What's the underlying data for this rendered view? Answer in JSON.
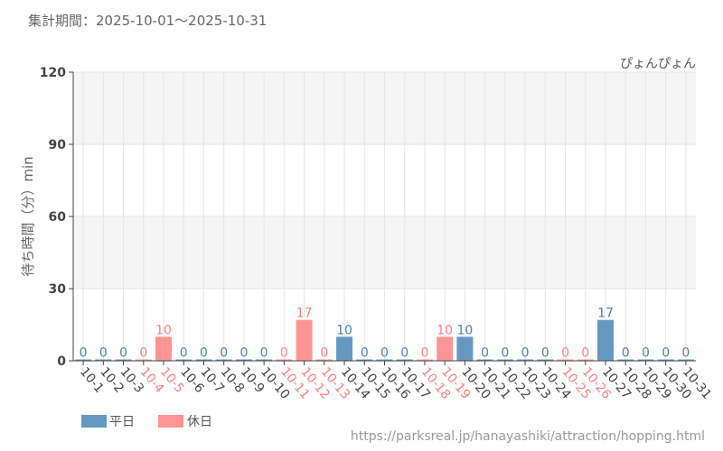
{
  "header": {
    "period_label": "集計期間：2025-10-01〜2025-10-31"
  },
  "footer": {
    "source_url": "https://parksreal.jp/hanayashiki/attraction/hopping.html"
  },
  "colors": {
    "weekday": "#6699c2",
    "holiday": "#ff9494",
    "weekday_text": "#4a7fb0",
    "holiday_text": "#ff8080"
  },
  "chart_data": {
    "type": "bar",
    "title": "ぴょんぴょん",
    "xlabel": "",
    "ylabel": "待ち時間（分）min",
    "ylim": [
      0,
      120
    ],
    "yticks": [
      0,
      30,
      60,
      90,
      120
    ],
    "grid": true,
    "legend": {
      "placement": "bottom-left",
      "entries": [
        "平日",
        "休日"
      ]
    },
    "categories": [
      "10-1",
      "10-2",
      "10-3",
      "10-4",
      "10-5",
      "10-6",
      "10-7",
      "10-8",
      "10-9",
      "10-10",
      "10-11",
      "10-12",
      "10-13",
      "10-14",
      "10-15",
      "10-16",
      "10-17",
      "10-18",
      "10-19",
      "10-20",
      "10-21",
      "10-22",
      "10-23",
      "10-24",
      "10-25",
      "10-26",
      "10-27",
      "10-28",
      "10-29",
      "10-30",
      "10-31"
    ],
    "values": [
      0,
      0,
      0,
      0,
      10,
      0,
      0,
      0,
      0,
      0,
      0,
      17,
      0,
      10,
      0,
      0,
      0,
      0,
      10,
      10,
      0,
      0,
      0,
      0,
      0,
      0,
      17,
      0,
      0,
      0,
      0
    ],
    "day_type": [
      "平日",
      "平日",
      "平日",
      "休日",
      "休日",
      "平日",
      "平日",
      "平日",
      "平日",
      "平日",
      "休日",
      "休日",
      "休日",
      "平日",
      "平日",
      "平日",
      "平日",
      "休日",
      "休日",
      "平日",
      "平日",
      "平日",
      "平日",
      "平日",
      "休日",
      "休日",
      "平日",
      "平日",
      "平日",
      "平日",
      "平日"
    ]
  }
}
